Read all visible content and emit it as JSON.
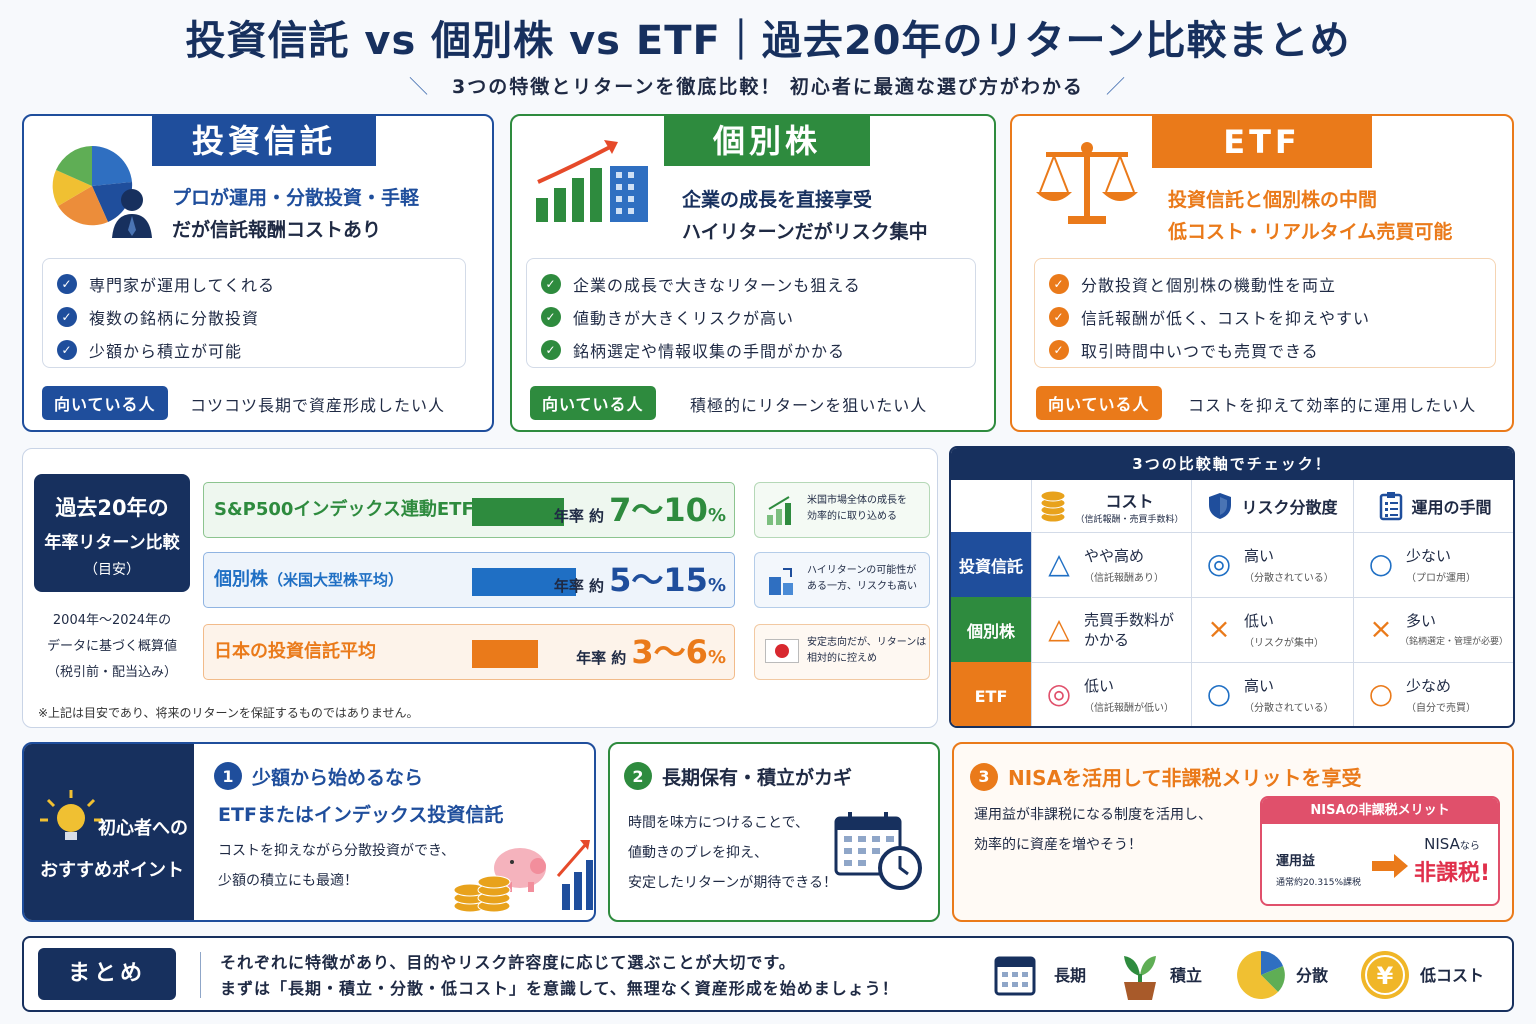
{
  "header": {
    "title": "投資信託 vs 個別株 vs ETF｜過去20年のリターン比較まとめ",
    "subtitle": "3つの特徴とリターンを徹底比較！ 初心者に最適な選び方がわかる"
  },
  "cards": [
    {
      "name": "投資信託",
      "tagline_1": "プロが運用・分散投資・手軽",
      "tagline_2": "だが信託報酬コストあり",
      "points": [
        "専門家が運用してくれる",
        "複数の銘柄に分散投資",
        "少額から積立が可能"
      ],
      "fit_label": "向いている人",
      "fit_text": "コツコツ長期で資産形成したい人",
      "color": "#1f4e9c"
    },
    {
      "name": "個別株",
      "tagline_1": "企業の成長を直接享受",
      "tagline_2": "ハイリターンだがリスク集中",
      "points": [
        "企業の成長で大きなリターンも狙える",
        "値動きが大きくリスクが高い",
        "銘柄選定や情報収集の手間がかかる"
      ],
      "fit_label": "向いている人",
      "fit_text": "積極的にリターンを狙いたい人",
      "color": "#2e8b3e"
    },
    {
      "name": "ETF",
      "tagline_1": "投資信託と個別株の中間",
      "tagline_2": "低コスト・リアルタイム売買可能",
      "points": [
        "分散投資と個別株の機動性を両立",
        "信託報酬が低く、コストを抑えやすい",
        "取引時間中いつでも売買できる"
      ],
      "fit_label": "向いている人",
      "fit_text": "コストを抑えて効率的に運用したい人",
      "color": "#ea7a1a"
    }
  ],
  "returns": {
    "label_1": "過去20年の",
    "label_2": "年率リターン比較",
    "label_3": "（目安）",
    "basis_1": "2004年～2024年の",
    "basis_2": "データに基づく概算値",
    "basis_3": "（税引前・配当込み）",
    "disclaimer": "※上記は目安であり、将来のリターンを保証するものではありません。",
    "rows": [
      {
        "name": "S&P500インデックス連動ETF",
        "prefix": "年率 約",
        "value": "7〜10",
        "unit": "%",
        "low": 7,
        "high": 10,
        "note_1": "米国市場全体の成長を",
        "note_2": "効率的に取り込める",
        "color": "#2e8b3e",
        "bg": "#eef7ef"
      },
      {
        "name": "個別株",
        "name_sub": "（米国大型株平均）",
        "prefix": "年率 約",
        "value": "5〜15",
        "unit": "%",
        "low": 5,
        "high": 15,
        "note_1": "ハイリターンの可能性が",
        "note_2": "ある一方、リスクも高い",
        "color": "#1f6fc4",
        "bg": "#eef4fb"
      },
      {
        "name": "日本の投資信託平均",
        "prefix": "年率 約",
        "value": "3〜6",
        "unit": "%",
        "low": 3,
        "high": 6,
        "note_1": "安定志向だが、リターンは",
        "note_2": "相対的に控えめ",
        "color": "#ea7a1a",
        "bg": "#fdf3ea"
      }
    ]
  },
  "comparison": {
    "caption": "3つの比較軸でチェック！",
    "columns": [
      {
        "label": "コスト",
        "sub": "（信託報酬・売買手数料）",
        "icon": "coins-icon"
      },
      {
        "label": "リスク分散度",
        "icon": "shield-icon"
      },
      {
        "label": "運用の手間",
        "icon": "clipboard-icon"
      }
    ],
    "rows": [
      {
        "name": "投資信託",
        "color": "#1f4e9c",
        "cells": [
          {
            "sym": "△",
            "main": "やや高め",
            "sub": "（信託報酬あり）",
            "color": "#1f6fc4"
          },
          {
            "sym": "◎",
            "main": "高い",
            "sub": "（分散されている）",
            "color": "#1f6fc4"
          },
          {
            "sym": "○",
            "main": "少ない",
            "sub": "（プロが運用）",
            "color": "#1f6fc4"
          }
        ]
      },
      {
        "name": "個別株",
        "color": "#2e8b3e",
        "cells": [
          {
            "sym": "△",
            "main": "売買手数料が",
            "main2": "かかる",
            "color": "#ea7a1a"
          },
          {
            "sym": "×",
            "main": "低い",
            "sub": "（リスクが集中）",
            "color": "#ea7a1a"
          },
          {
            "sym": "×",
            "main": "多い",
            "sub": "（銘柄選定・管理が必要）",
            "color": "#ea7a1a"
          }
        ]
      },
      {
        "name": "ETF",
        "color": "#ea7a1a",
        "cells": [
          {
            "sym": "◎",
            "main": "低い",
            "sub": "（信託報酬が低い）",
            "color": "#e0506b"
          },
          {
            "sym": "○",
            "main": "高い",
            "sub": "（分散されている）",
            "color": "#1f6fc4"
          },
          {
            "sym": "○",
            "main": "少なめ",
            "sub": "（自分で売買）",
            "color": "#ea7a1a"
          }
        ]
      }
    ]
  },
  "tips": {
    "label_1": "初心者への",
    "label_2": "おすすめポイント",
    "items": [
      {
        "num": "1",
        "title_1": "少額から始めるなら",
        "title_2": "ETFまたはインデックス投資信託",
        "text_1": "コストを抑えながら分散投資ができ、",
        "text_2": "少額の積立にも最適！"
      },
      {
        "num": "2",
        "title_1": "長期保有・積立がカギ",
        "text_1": "時間を味方につけることで、",
        "text_2": "値動きのブレを抑え、",
        "text_3": "安定したリターンが期待できる！"
      },
      {
        "num": "3",
        "title_1": "NISAを活用して非課税メリットを享受",
        "text_1": "運用益が非課税になる制度を活用し、",
        "text_2": "効率的に資産を増やそう！"
      }
    ],
    "nisa": {
      "box_title": "NISAの非課税メリット",
      "left_1": "運用益",
      "left_2": "通常約20.315%課税",
      "right_1": "NISA",
      "right_1b": "なら",
      "right_2": "非課税!"
    }
  },
  "summary": {
    "badge": "まとめ",
    "line_1": "それぞれに特徴があり、目的やリスク許容度に応じて選ぶことが大切です。",
    "line_2": "まずは「長期・積立・分散・低コスト」を意識して、無理なく資産形成を始めましょう！",
    "keywords": [
      {
        "label": "長期",
        "icon": "calendar-icon"
      },
      {
        "label": "積立",
        "icon": "sprout-icon"
      },
      {
        "label": "分散",
        "icon": "pie-chart-icon"
      },
      {
        "label": "低コスト",
        "icon": "yen-coin-icon"
      }
    ]
  }
}
